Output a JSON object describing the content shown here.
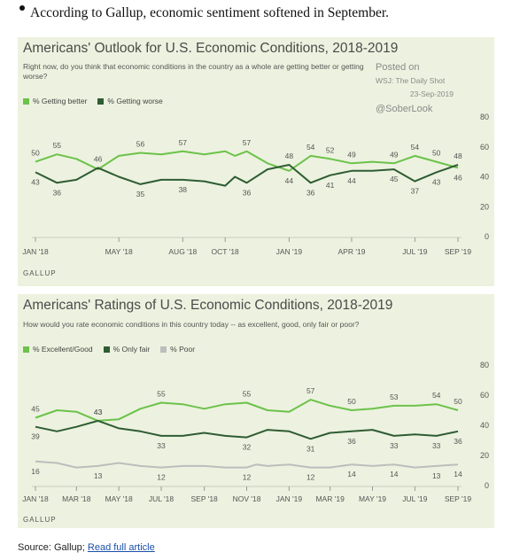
{
  "headline": "According to Gallup, economic sentiment softened in September.",
  "footer": {
    "source_label": "Source: Gallup;",
    "link_label": "Read full article"
  },
  "watermark": {
    "posted_on": "Posted on",
    "publication": "WSJ: The Daily Shot",
    "date": "23-Sep-2019",
    "handle": "@SoberLook"
  },
  "chart_data": [
    {
      "type": "line",
      "title": "Americans' Outlook for U.S. Economic Conditions, 2018-2019",
      "subtitle": "Right now, do you think that economic conditions in the country as a whole are getting better or getting worse?",
      "source": "GALLUP",
      "ylim": [
        0,
        80
      ],
      "yticks": [
        "0",
        "20",
        "40",
        "60",
        "80"
      ],
      "x_start": "2018-01",
      "x_end": "2019-09",
      "xticks": [
        {
          "label": "JAN '18",
          "x": "2018-01-01"
        },
        {
          "label": "MAY '18",
          "x": "2018-05-01"
        },
        {
          "label": "AUG '18",
          "x": "2018-08-01"
        },
        {
          "label": "OCT '18",
          "x": "2018-10-01"
        },
        {
          "label": "JAN '19",
          "x": "2019-01-01"
        },
        {
          "label": "APR '19",
          "x": "2019-04-01"
        },
        {
          "label": "JUL '19",
          "x": "2019-07-01"
        },
        {
          "label": "SEP '19",
          "x": "2019-09-01"
        }
      ],
      "series": [
        {
          "name": "% Getting better",
          "color": "#6cc24a",
          "points": [
            [
              "2018-01-01",
              50
            ],
            [
              "2018-02-01",
              55
            ],
            [
              "2018-03-01",
              52
            ],
            [
              "2018-04-01",
              45
            ],
            [
              "2018-05-01",
              54
            ],
            [
              "2018-06-01",
              56
            ],
            [
              "2018-07-01",
              55
            ],
            [
              "2018-08-01",
              57
            ],
            [
              "2018-09-01",
              55
            ],
            [
              "2018-10-01",
              57
            ],
            [
              "2018-10-15",
              54
            ],
            [
              "2018-11-01",
              57
            ],
            [
              "2018-12-01",
              49
            ],
            [
              "2019-01-01",
              44
            ],
            [
              "2019-02-01",
              54
            ],
            [
              "2019-03-01",
              52
            ],
            [
              "2019-04-01",
              49
            ],
            [
              "2019-05-01",
              50
            ],
            [
              "2019-06-01",
              49
            ],
            [
              "2019-07-01",
              54
            ],
            [
              "2019-08-01",
              50
            ],
            [
              "2019-09-01",
              46
            ]
          ],
          "labels": [
            [
              "2018-01-01",
              50
            ],
            [
              "2018-02-01",
              55
            ],
            [
              "2018-06-01",
              56
            ],
            [
              "2018-08-01",
              57
            ],
            [
              "2018-11-01",
              57
            ],
            [
              "2019-01-01",
              44
            ],
            [
              "2019-02-01",
              54
            ],
            [
              "2019-03-01",
              52
            ],
            [
              "2019-04-01",
              49
            ],
            [
              "2019-06-01",
              49
            ],
            [
              "2019-07-01",
              54
            ],
            [
              "2019-08-01",
              50
            ],
            [
              "2019-09-01",
              46
            ]
          ]
        },
        {
          "name": "% Getting worse",
          "color": "#2f5c33",
          "points": [
            [
              "2018-01-01",
              43
            ],
            [
              "2018-02-01",
              36
            ],
            [
              "2018-03-01",
              38
            ],
            [
              "2018-04-01",
              46
            ],
            [
              "2018-05-01",
              40
            ],
            [
              "2018-06-01",
              35
            ],
            [
              "2018-07-01",
              38
            ],
            [
              "2018-08-01",
              38
            ],
            [
              "2018-09-01",
              37
            ],
            [
              "2018-10-01",
              34
            ],
            [
              "2018-10-15",
              40
            ],
            [
              "2018-11-01",
              36
            ],
            [
              "2018-12-01",
              45
            ],
            [
              "2019-01-01",
              48
            ],
            [
              "2019-02-01",
              36
            ],
            [
              "2019-03-01",
              41
            ],
            [
              "2019-04-01",
              44
            ],
            [
              "2019-05-01",
              44
            ],
            [
              "2019-06-01",
              45
            ],
            [
              "2019-07-01",
              37
            ],
            [
              "2019-08-01",
              43
            ],
            [
              "2019-09-01",
              48
            ]
          ],
          "labels": [
            [
              "2018-01-01",
              43
            ],
            [
              "2018-02-01",
              36
            ],
            [
              "2018-04-01",
              46
            ],
            [
              "2018-06-01",
              35
            ],
            [
              "2018-08-01",
              38
            ],
            [
              "2018-11-01",
              36
            ],
            [
              "2019-01-01",
              48
            ],
            [
              "2019-02-01",
              36
            ],
            [
              "2019-03-01",
              41
            ],
            [
              "2019-04-01",
              44
            ],
            [
              "2019-06-01",
              45
            ],
            [
              "2019-07-01",
              37
            ],
            [
              "2019-08-01",
              43
            ],
            [
              "2019-09-01",
              48
            ]
          ]
        }
      ]
    },
    {
      "type": "line",
      "title": "Americans' Ratings of U.S. Economic Conditions, 2018-2019",
      "subtitle": "How would you rate economic conditions in this country today -- as excellent, good, only fair or poor?",
      "source": "GALLUP",
      "ylim": [
        0,
        80
      ],
      "yticks": [
        "0",
        "20",
        "40",
        "60",
        "80"
      ],
      "x_start": "2018-01",
      "x_end": "2019-09",
      "xticks": [
        {
          "label": "JAN '18",
          "x": "2018-01-01"
        },
        {
          "label": "MAR '18",
          "x": "2018-03-01"
        },
        {
          "label": "MAY '18",
          "x": "2018-05-01"
        },
        {
          "label": "JUL '18",
          "x": "2018-07-01"
        },
        {
          "label": "SEP '18",
          "x": "2018-09-01"
        },
        {
          "label": "NOV '18",
          "x": "2018-11-01"
        },
        {
          "label": "JAN '19",
          "x": "2019-01-01"
        },
        {
          "label": "MAR '19",
          "x": "2019-03-01"
        },
        {
          "label": "MAY '19",
          "x": "2019-05-01"
        },
        {
          "label": "JUL '19",
          "x": "2019-07-01"
        },
        {
          "label": "SEP '19",
          "x": "2019-09-01"
        }
      ],
      "series": [
        {
          "name": "% Excellent/Good",
          "color": "#6cc24a",
          "points": [
            [
              "2018-01-01",
              45
            ],
            [
              "2018-02-01",
              50
            ],
            [
              "2018-03-01",
              49
            ],
            [
              "2018-04-01",
              43
            ],
            [
              "2018-05-01",
              44
            ],
            [
              "2018-06-01",
              51
            ],
            [
              "2018-07-01",
              55
            ],
            [
              "2018-08-01",
              54
            ],
            [
              "2018-09-01",
              51
            ],
            [
              "2018-10-01",
              54
            ],
            [
              "2018-11-01",
              55
            ],
            [
              "2018-12-01",
              50
            ],
            [
              "2019-01-01",
              49
            ],
            [
              "2019-02-01",
              57
            ],
            [
              "2019-03-01",
              53
            ],
            [
              "2019-04-01",
              50
            ],
            [
              "2019-05-01",
              51
            ],
            [
              "2019-06-01",
              53
            ],
            [
              "2019-07-01",
              53
            ],
            [
              "2019-08-01",
              54
            ],
            [
              "2019-09-01",
              50
            ]
          ],
          "labels": [
            [
              "2018-01-01",
              45
            ],
            [
              "2018-04-01",
              43
            ],
            [
              "2018-07-01",
              55
            ],
            [
              "2018-11-01",
              55
            ],
            [
              "2019-02-01",
              57
            ],
            [
              "2019-04-01",
              50
            ],
            [
              "2019-06-01",
              53
            ],
            [
              "2019-08-01",
              54
            ],
            [
              "2019-09-01",
              50
            ]
          ]
        },
        {
          "name": "% Only fair",
          "color": "#2f5c33",
          "points": [
            [
              "2018-01-01",
              39
            ],
            [
              "2018-02-01",
              36
            ],
            [
              "2018-03-01",
              39
            ],
            [
              "2018-04-01",
              43
            ],
            [
              "2018-05-01",
              38
            ],
            [
              "2018-06-01",
              36
            ],
            [
              "2018-07-01",
              33
            ],
            [
              "2018-08-01",
              33
            ],
            [
              "2018-09-01",
              35
            ],
            [
              "2018-10-01",
              33
            ],
            [
              "2018-11-01",
              32
            ],
            [
              "2018-12-01",
              37
            ],
            [
              "2019-01-01",
              36
            ],
            [
              "2019-02-01",
              31
            ],
            [
              "2019-03-01",
              35
            ],
            [
              "2019-04-01",
              36
            ],
            [
              "2019-05-01",
              37
            ],
            [
              "2019-06-01",
              33
            ],
            [
              "2019-07-01",
              34
            ],
            [
              "2019-08-01",
              33
            ],
            [
              "2019-09-01",
              36
            ]
          ],
          "labels": [
            [
              "2018-01-01",
              39
            ],
            [
              "2018-04-01",
              43
            ],
            [
              "2018-07-01",
              33
            ],
            [
              "2018-11-01",
              32
            ],
            [
              "2019-02-01",
              31
            ],
            [
              "2019-04-01",
              36
            ],
            [
              "2019-06-01",
              33
            ],
            [
              "2019-08-01",
              33
            ],
            [
              "2019-09-01",
              36
            ]
          ]
        },
        {
          "name": "% Poor",
          "color": "#bdbdbd",
          "points": [
            [
              "2018-01-01",
              16
            ],
            [
              "2018-02-01",
              15
            ],
            [
              "2018-03-01",
              12
            ],
            [
              "2018-04-01",
              13
            ],
            [
              "2018-05-01",
              15
            ],
            [
              "2018-06-01",
              13
            ],
            [
              "2018-07-01",
              12
            ],
            [
              "2018-08-01",
              13
            ],
            [
              "2018-09-01",
              13
            ],
            [
              "2018-10-01",
              12
            ],
            [
              "2018-11-01",
              12
            ],
            [
              "2018-11-15",
              14
            ],
            [
              "2018-12-01",
              13
            ],
            [
              "2019-01-01",
              14
            ],
            [
              "2019-02-01",
              12
            ],
            [
              "2019-03-01",
              12
            ],
            [
              "2019-04-01",
              14
            ],
            [
              "2019-05-01",
              13
            ],
            [
              "2019-06-01",
              14
            ],
            [
              "2019-07-01",
              12
            ],
            [
              "2019-08-01",
              13
            ],
            [
              "2019-09-01",
              14
            ]
          ],
          "labels": [
            [
              "2018-01-01",
              16
            ],
            [
              "2018-04-01",
              13
            ],
            [
              "2018-07-01",
              12
            ],
            [
              "2018-11-01",
              12
            ],
            [
              "2019-02-01",
              12
            ],
            [
              "2019-04-01",
              14
            ],
            [
              "2019-06-01",
              14
            ],
            [
              "2019-08-01",
              13
            ],
            [
              "2019-09-01",
              14
            ]
          ]
        }
      ]
    }
  ]
}
